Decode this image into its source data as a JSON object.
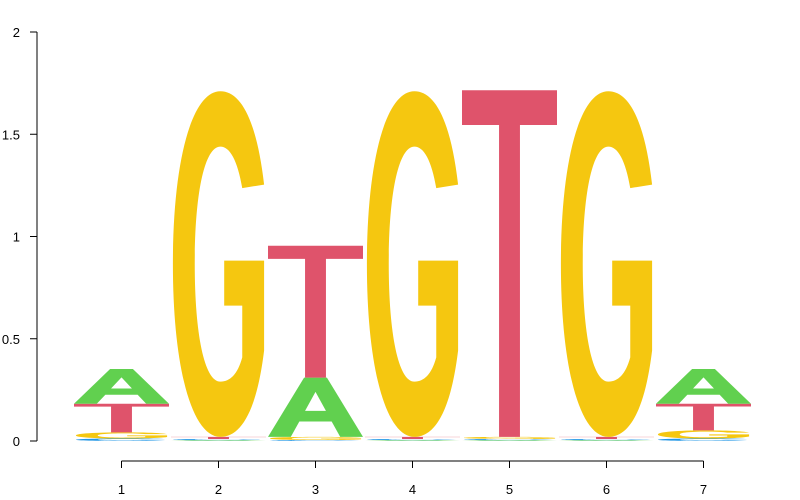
{
  "chart_data": {
    "type": "sequence-logo",
    "title": "",
    "xlabel": "",
    "ylabel": "",
    "ylim": [
      0,
      2
    ],
    "y_ticks": [
      0,
      0.5,
      1,
      1.5,
      2
    ],
    "y_tick_labels": [
      "0",
      "0.5",
      "1",
      "1.5",
      "2"
    ],
    "positions": [
      "1",
      "2",
      "3",
      "4",
      "5",
      "6",
      "7"
    ],
    "letter_colors": {
      "A": "#61d04f",
      "C": "#2297e6",
      "G": "#f5c710",
      "T": "#df536b"
    },
    "stacks": [
      [
        {
          "letter": "C",
          "value": 0.012
        },
        {
          "letter": "G",
          "value": 0.03
        },
        {
          "letter": "T",
          "value": 0.14
        },
        {
          "letter": "A",
          "value": 0.17
        }
      ],
      [
        {
          "letter": "A",
          "value": 0.004
        },
        {
          "letter": "C",
          "value": 0.006
        },
        {
          "letter": "T",
          "value": 0.01
        },
        {
          "letter": "G",
          "value": 1.69
        }
      ],
      [
        {
          "letter": "C",
          "value": 0.005
        },
        {
          "letter": "G",
          "value": 0.015
        },
        {
          "letter": "A",
          "value": 0.29
        },
        {
          "letter": "T",
          "value": 0.645
        }
      ],
      [
        {
          "letter": "A",
          "value": 0.004
        },
        {
          "letter": "C",
          "value": 0.006
        },
        {
          "letter": "T",
          "value": 0.01
        },
        {
          "letter": "G",
          "value": 1.69
        }
      ],
      [
        {
          "letter": "A",
          "value": 0.004
        },
        {
          "letter": "C",
          "value": 0.006
        },
        {
          "letter": "G",
          "value": 0.01
        },
        {
          "letter": "T",
          "value": 1.695
        }
      ],
      [
        {
          "letter": "A",
          "value": 0.004
        },
        {
          "letter": "C",
          "value": 0.006
        },
        {
          "letter": "T",
          "value": 0.01
        },
        {
          "letter": "G",
          "value": 1.69
        }
      ],
      [
        {
          "letter": "C",
          "value": 0.012
        },
        {
          "letter": "G",
          "value": 0.04
        },
        {
          "letter": "T",
          "value": 0.13
        },
        {
          "letter": "A",
          "value": 0.17
        }
      ]
    ]
  }
}
